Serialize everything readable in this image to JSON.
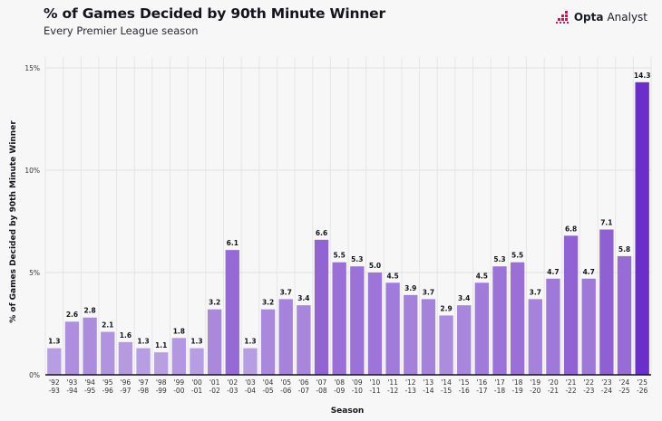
{
  "header": {
    "title": "% of Games Decided by 90th Minute Winner",
    "subtitle": "Every Premier League season",
    "logo": "Opta Analyst",
    "logo_bold": "Opta",
    "logo_rest": "Analyst"
  },
  "colors": {
    "bar_light": "#b9a0e2",
    "bar_dark": "#8f60d2",
    "bar_highlight": "#6a2fc9",
    "logo_accent": "#c2185b"
  },
  "chart_data": {
    "type": "bar",
    "title": "% of Games Decided by 90th Minute Winner",
    "subtitle": "Every Premier League season",
    "xlabel": "Season",
    "ylabel": "% of Games Decided by 90th Minute Winner",
    "ylim": [
      0,
      15
    ],
    "yticks": [
      {
        "v": 0,
        "label": "0%"
      },
      {
        "v": 5,
        "label": "5%"
      },
      {
        "v": 10,
        "label": "10%"
      },
      {
        "v": 15,
        "label": "15%"
      }
    ],
    "grid": true,
    "categories": [
      [
        "'92",
        "-93"
      ],
      [
        "'93",
        "-94"
      ],
      [
        "'94",
        "-95"
      ],
      [
        "'95",
        "-96"
      ],
      [
        "'96",
        "-97"
      ],
      [
        "'97",
        "-98"
      ],
      [
        "'98",
        "-99"
      ],
      [
        "'99",
        "-00"
      ],
      [
        "'00",
        "-01"
      ],
      [
        "'01",
        "-02"
      ],
      [
        "'02",
        "-03"
      ],
      [
        "'03",
        "-04"
      ],
      [
        "'04",
        "-05"
      ],
      [
        "'05",
        "-06"
      ],
      [
        "'06",
        "-07"
      ],
      [
        "'07",
        "-08"
      ],
      [
        "'08",
        "-09"
      ],
      [
        "'09",
        "-10"
      ],
      [
        "'10",
        "-11"
      ],
      [
        "'11",
        "-12"
      ],
      [
        "'12",
        "-13"
      ],
      [
        "'13",
        "-14"
      ],
      [
        "'14",
        "-15"
      ],
      [
        "'15",
        "-16"
      ],
      [
        "'16",
        "-17"
      ],
      [
        "'17",
        "-18"
      ],
      [
        "'18",
        "-19"
      ],
      [
        "'19",
        "-20"
      ],
      [
        "'20",
        "-21"
      ],
      [
        "'21",
        "-22"
      ],
      [
        "'22",
        "-23"
      ],
      [
        "'23",
        "-24"
      ],
      [
        "'24",
        "-25"
      ],
      [
        "'25",
        "-26"
      ]
    ],
    "values": [
      1.3,
      2.6,
      2.8,
      2.1,
      1.6,
      1.3,
      1.1,
      1.8,
      1.3,
      3.2,
      6.1,
      1.3,
      3.2,
      3.7,
      3.4,
      6.6,
      5.5,
      5.3,
      5.0,
      4.5,
      3.9,
      3.7,
      2.9,
      3.4,
      4.5,
      5.3,
      5.5,
      3.7,
      4.7,
      6.8,
      4.7,
      7.1,
      5.8,
      14.3
    ],
    "highlight_index": 33
  }
}
